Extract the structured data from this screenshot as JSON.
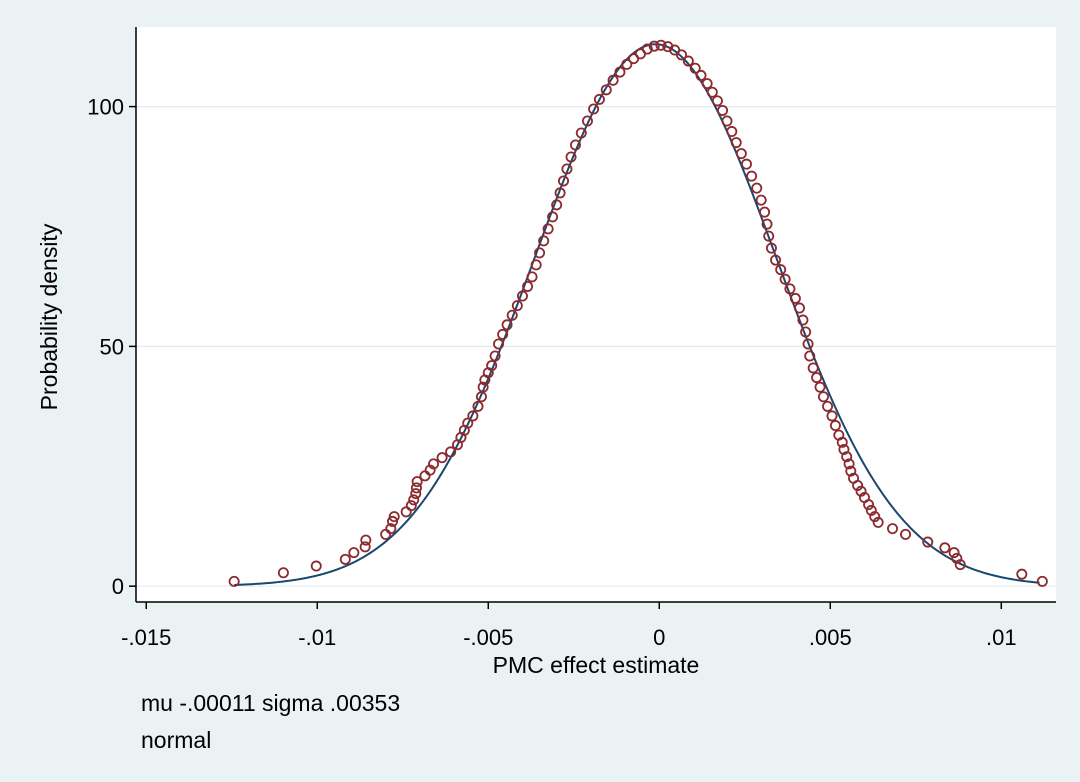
{
  "chart_data": {
    "type": "scatter",
    "xlabel": "PMC effect estimate",
    "ylabel": "Probability density",
    "xlim": [
      -0.0153,
      0.0116
    ],
    "ylim": [
      -3.3,
      116.6
    ],
    "x_ticks": [
      {
        "value": -0.015,
        "label": "-.015"
      },
      {
        "value": -0.01,
        "label": "-.01"
      },
      {
        "value": -0.005,
        "label": "-.005"
      },
      {
        "value": 0,
        "label": "0"
      },
      {
        "value": 0.005,
        "label": ".005"
      },
      {
        "value": 0.01,
        "label": ".01"
      }
    ],
    "y_ticks": [
      {
        "value": 0,
        "label": "0"
      },
      {
        "value": 50,
        "label": "50"
      },
      {
        "value": 100,
        "label": "100"
      }
    ],
    "grid": true,
    "notes": [
      "mu -.00011 sigma .00353",
      "normal"
    ],
    "series": [
      {
        "type": "scatter",
        "color": "#8b2a2f",
        "points": [
          [
            -0.01243,
            1.0
          ],
          [
            -0.01099,
            2.8
          ],
          [
            -0.01003,
            4.2
          ],
          [
            -0.00918,
            5.6
          ],
          [
            -0.00893,
            7.0
          ],
          [
            -0.0086,
            8.2
          ],
          [
            -0.00858,
            9.6
          ],
          [
            -0.008,
            10.8
          ],
          [
            -0.00785,
            12.0
          ],
          [
            -0.0078,
            13.5
          ],
          [
            -0.00775,
            14.5
          ],
          [
            -0.0074,
            15.5
          ],
          [
            -0.00725,
            16.8
          ],
          [
            -0.00718,
            18.0
          ],
          [
            -0.00712,
            19.3
          ],
          [
            -0.0071,
            20.5
          ],
          [
            -0.00708,
            21.8
          ],
          [
            -0.00685,
            23.0
          ],
          [
            -0.0067,
            24.2
          ],
          [
            -0.0066,
            25.5
          ],
          [
            -0.00635,
            26.8
          ],
          [
            -0.0061,
            28.0
          ],
          [
            -0.0059,
            29.5
          ],
          [
            -0.0058,
            31.0
          ],
          [
            -0.0057,
            32.5
          ],
          [
            -0.0056,
            34.0
          ],
          [
            -0.00545,
            35.5
          ],
          [
            -0.0053,
            37.5
          ],
          [
            -0.0052,
            39.5
          ],
          [
            -0.00515,
            41.5
          ],
          [
            -0.0051,
            43.0
          ],
          [
            -0.005,
            44.5
          ],
          [
            -0.0049,
            46.0
          ],
          [
            -0.0048,
            48.0
          ],
          [
            -0.0047,
            50.5
          ],
          [
            -0.00458,
            52.5
          ],
          [
            -0.00445,
            54.5
          ],
          [
            -0.0043,
            56.5
          ],
          [
            -0.00415,
            58.5
          ],
          [
            -0.004,
            60.5
          ],
          [
            -0.00385,
            62.5
          ],
          [
            -0.00372,
            64.5
          ],
          [
            -0.0036,
            67.0
          ],
          [
            -0.0035,
            69.5
          ],
          [
            -0.00338,
            72.0
          ],
          [
            -0.00325,
            74.5
          ],
          [
            -0.00312,
            77.0
          ],
          [
            -0.003,
            79.5
          ],
          [
            -0.0029,
            82.0
          ],
          [
            -0.0028,
            84.5
          ],
          [
            -0.0027,
            87.0
          ],
          [
            -0.00258,
            89.5
          ],
          [
            -0.00245,
            92.0
          ],
          [
            -0.00228,
            94.5
          ],
          [
            -0.0021,
            97.0
          ],
          [
            -0.00192,
            99.5
          ],
          [
            -0.00175,
            101.5
          ],
          [
            -0.00155,
            103.5
          ],
          [
            -0.00135,
            105.5
          ],
          [
            -0.00115,
            107.2
          ],
          [
            -0.00095,
            108.8
          ],
          [
            -0.00075,
            110.0
          ],
          [
            -0.00055,
            111.0
          ],
          [
            -0.00035,
            112.0
          ],
          [
            -0.00015,
            112.6
          ],
          [
            5e-05,
            112.8
          ],
          [
            0.00025,
            112.5
          ],
          [
            0.00045,
            111.8
          ],
          [
            0.00065,
            110.8
          ],
          [
            0.00085,
            109.5
          ],
          [
            0.00105,
            108.0
          ],
          [
            0.00122,
            106.5
          ],
          [
            0.0014,
            104.8
          ],
          [
            0.00155,
            103.0
          ],
          [
            0.0017,
            101.2
          ],
          [
            0.00185,
            99.2
          ],
          [
            0.00198,
            97.0
          ],
          [
            0.00212,
            94.8
          ],
          [
            0.00225,
            92.5
          ],
          [
            0.0024,
            90.2
          ],
          [
            0.00255,
            88.0
          ],
          [
            0.0027,
            85.5
          ],
          [
            0.00285,
            83.0
          ],
          [
            0.00298,
            80.5
          ],
          [
            0.00308,
            78.0
          ],
          [
            0.00315,
            75.5
          ],
          [
            0.0032,
            73.0
          ],
          [
            0.00328,
            70.5
          ],
          [
            0.0034,
            68.0
          ],
          [
            0.00355,
            66.0
          ],
          [
            0.00368,
            64.0
          ],
          [
            0.00382,
            62.0
          ],
          [
            0.00398,
            60.0
          ],
          [
            0.0041,
            58.0
          ],
          [
            0.0042,
            55.5
          ],
          [
            0.00428,
            53.0
          ],
          [
            0.00435,
            50.5
          ],
          [
            0.0044,
            48.0
          ],
          [
            0.0045,
            45.5
          ],
          [
            0.0046,
            43.5
          ],
          [
            0.0047,
            41.5
          ],
          [
            0.0048,
            39.5
          ],
          [
            0.00492,
            37.5
          ],
          [
            0.00505,
            35.5
          ],
          [
            0.00515,
            33.5
          ],
          [
            0.00525,
            31.5
          ],
          [
            0.00535,
            30.0
          ],
          [
            0.0054,
            28.5
          ],
          [
            0.00548,
            27.0
          ],
          [
            0.00555,
            25.5
          ],
          [
            0.0056,
            24.0
          ],
          [
            0.00568,
            22.5
          ],
          [
            0.0058,
            21.0
          ],
          [
            0.0059,
            19.8
          ],
          [
            0.006,
            18.5
          ],
          [
            0.00612,
            17.0
          ],
          [
            0.0062,
            15.8
          ],
          [
            0.0063,
            14.5
          ],
          [
            0.0064,
            13.3
          ],
          [
            0.00682,
            12.0
          ],
          [
            0.0072,
            10.8
          ],
          [
            0.00785,
            9.2
          ],
          [
            0.00835,
            8.0
          ],
          [
            0.00862,
            7.0
          ],
          [
            0.0087,
            5.8
          ],
          [
            0.0088,
            4.5
          ],
          [
            0.0106,
            2.5
          ],
          [
            0.0112,
            1.0
          ]
        ]
      },
      {
        "type": "line",
        "name": "normal",
        "color": "#1a476f",
        "mu": -0.00011,
        "sigma": 0.00353,
        "x_range": [
          -0.01243,
          0.01112
        ]
      }
    ]
  }
}
